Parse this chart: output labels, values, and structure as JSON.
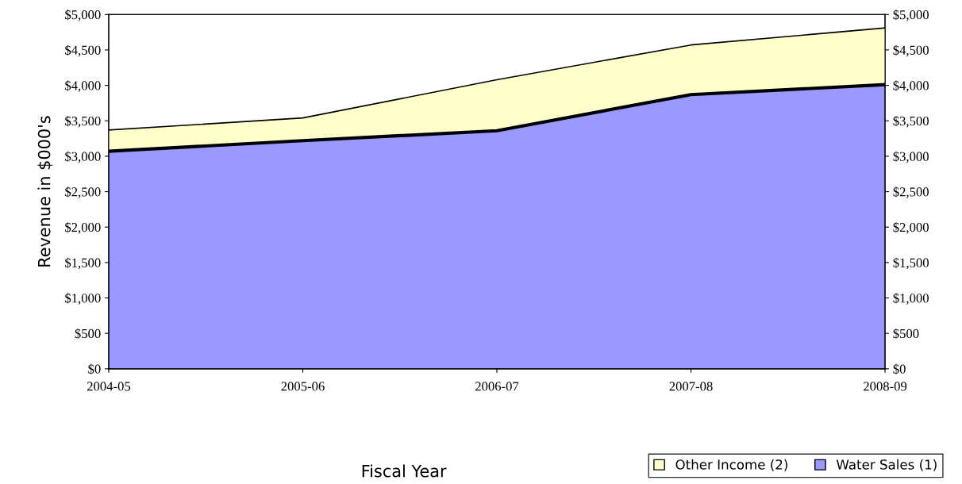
{
  "chart_data": {
    "type": "area",
    "stacked": true,
    "ylabel": "Revenue in $000's",
    "xlabel": "Fiscal Year",
    "categories": [
      "2004-05",
      "2005-06",
      "2006-07",
      "2007-08",
      "2008-09"
    ],
    "series": [
      {
        "name": "Water Sales (1)",
        "color": "#9999ff",
        "values": [
          3070,
          3220,
          3360,
          3870,
          4010
        ]
      },
      {
        "name": "Other Income (2)",
        "color": "#ffffcc",
        "values": [
          300,
          320,
          720,
          700,
          800
        ]
      }
    ],
    "ylim": [
      0,
      5000
    ],
    "yticks": [
      {
        "value": 0,
        "label": "$0"
      },
      {
        "value": 500,
        "label": "$500"
      },
      {
        "value": 1000,
        "label": "$1,000"
      },
      {
        "value": 1500,
        "label": "$1,500"
      },
      {
        "value": 2000,
        "label": "$2,000"
      },
      {
        "value": 2500,
        "label": "$2,500"
      },
      {
        "value": 3000,
        "label": "$3,000"
      },
      {
        "value": 3500,
        "label": "$3,500"
      },
      {
        "value": 4000,
        "label": "$4,000"
      },
      {
        "value": 4500,
        "label": "$4,500"
      },
      {
        "value": 5000,
        "label": "$5,000"
      }
    ],
    "y2lim": [
      0,
      5000
    ],
    "y2ticks": [
      {
        "value": 0,
        "label": "$0"
      },
      {
        "value": 500,
        "label": "$500"
      },
      {
        "value": 1000,
        "label": "$1,000"
      },
      {
        "value": 1500,
        "label": "$1,500"
      },
      {
        "value": 2000,
        "label": "$2,000"
      },
      {
        "value": 2500,
        "label": "$2,500"
      },
      {
        "value": 3000,
        "label": "$3,000"
      },
      {
        "value": 3500,
        "label": "$3,500"
      },
      {
        "value": 4000,
        "label": "$4,000"
      },
      {
        "value": 4500,
        "label": "$4,500"
      },
      {
        "value": 5000,
        "label": "$5,000"
      }
    ],
    "grid": false,
    "legend": "bottom right"
  }
}
